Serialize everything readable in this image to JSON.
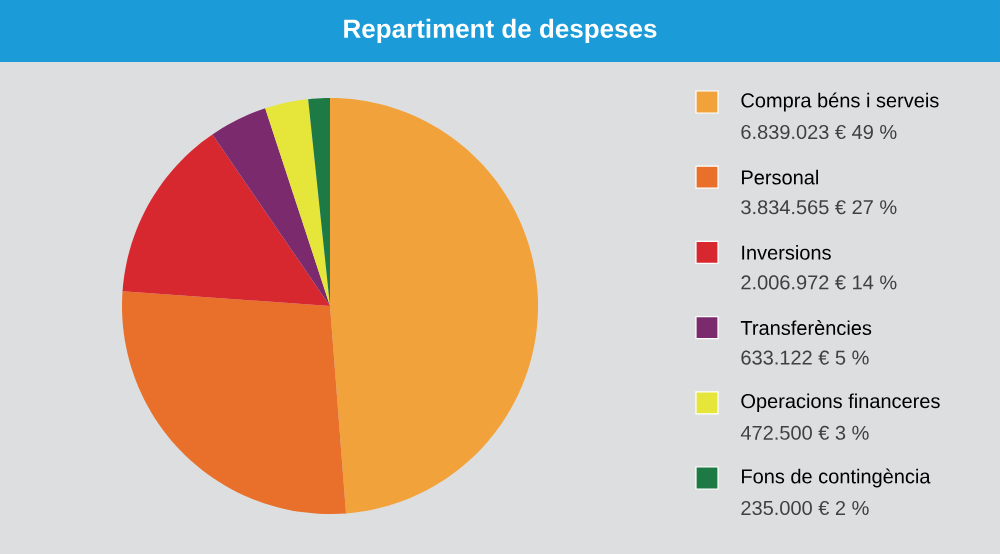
{
  "chart_data": {
    "type": "pie",
    "title": "Repartiment de despeses",
    "categories": [
      "Compra béns i serveis",
      "Personal",
      "Inversions",
      "Transferències",
      "Operacions financeres",
      "Fons de contingència"
    ],
    "values": [
      6839023,
      3834565,
      2006972,
      633122,
      472500,
      235000
    ],
    "value_labels": [
      "6.839.023 € 49 %",
      "3.834.565 € 27 %",
      "2.006.972 € 14 %",
      "633.122 € 5 %",
      "472.500 € 3 %",
      "235.000 € 2 %"
    ],
    "colors": [
      "#f2a23a",
      "#e8702a",
      "#d7282f",
      "#7b2a6e",
      "#e6e63a",
      "#1d7a45"
    ],
    "legend": "right"
  }
}
